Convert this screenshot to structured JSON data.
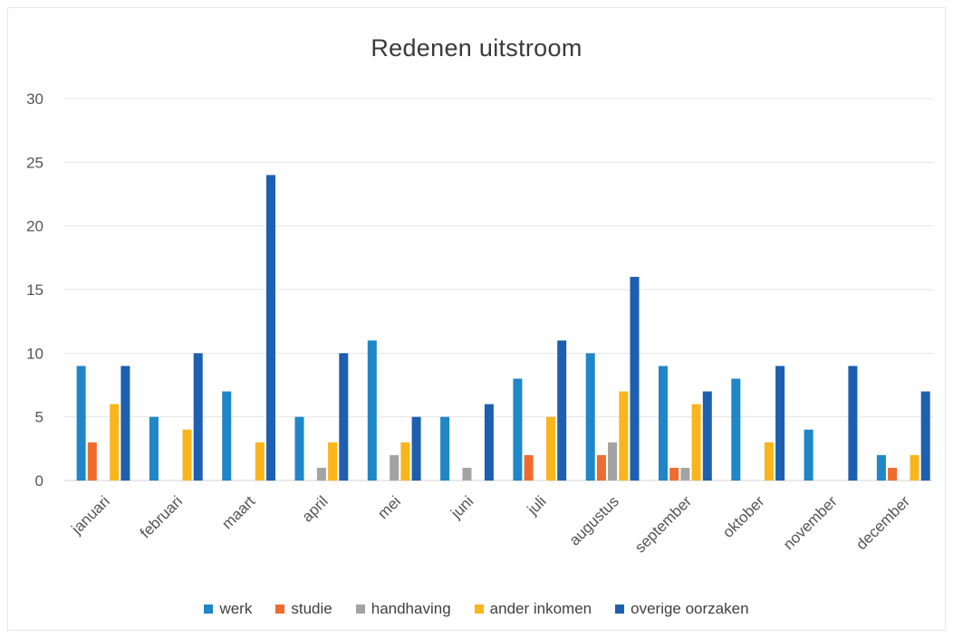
{
  "chart_data": {
    "type": "bar",
    "title": "Redenen uitstroom",
    "xlabel": "",
    "ylabel": "",
    "ylim": [
      0,
      30
    ],
    "yticks": [
      0,
      5,
      10,
      15,
      20,
      25,
      30
    ],
    "grid": true,
    "legend_position": "bottom",
    "categories": [
      "januari",
      "februari",
      "maart",
      "april",
      "mei",
      "juni",
      "juli",
      "augustus",
      "september",
      "oktober",
      "november",
      "december"
    ],
    "series": [
      {
        "name": "werk",
        "color": "#1f86c8",
        "values": [
          9,
          5,
          7,
          5,
          11,
          5,
          8,
          10,
          9,
          8,
          4,
          2
        ]
      },
      {
        "name": "studie",
        "color": "#ef6c2f",
        "values": [
          3,
          0,
          0,
          0,
          0,
          0,
          2,
          2,
          1,
          0,
          0,
          1
        ]
      },
      {
        "name": "handhaving",
        "color": "#a3a3a3",
        "values": [
          0,
          0,
          0,
          1,
          2,
          1,
          0,
          3,
          1,
          0,
          0,
          0
        ]
      },
      {
        "name": "ander inkomen",
        "color": "#f9b51c",
        "values": [
          6,
          4,
          3,
          3,
          3,
          0,
          5,
          7,
          6,
          3,
          0,
          2
        ]
      },
      {
        "name": "overige oorzaken",
        "color": "#1d5fb1",
        "values": [
          9,
          10,
          24,
          10,
          5,
          6,
          11,
          16,
          7,
          9,
          9,
          7
        ]
      }
    ]
  }
}
